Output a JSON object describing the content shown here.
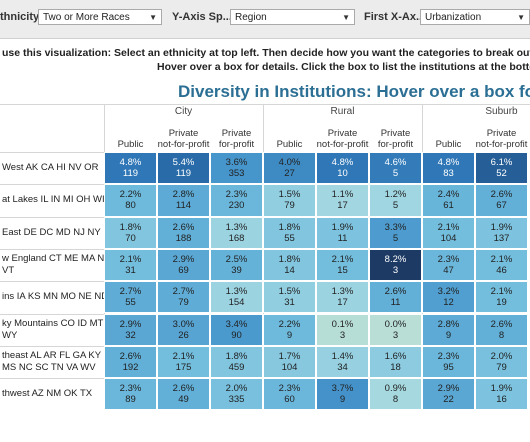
{
  "filters": [
    {
      "label": "thnicity ...",
      "value": "Two or More Races"
    },
    {
      "label": "Y-Axis Sp...",
      "value": "Region"
    },
    {
      "label": "First X-Ax...",
      "value": "Urbanization"
    }
  ],
  "instructions": [
    "use this visualization: Select an ethnicity at top left.  Then decide how you want the categories to break out by using the",
    "Hover over a box for details.  Click the box to list the institutions at the bottom"
  ],
  "title": "Diversity in Institutions: Hover over a box for detai",
  "groups": [
    "City",
    "Rural",
    "Suburb"
  ],
  "columns": [
    [
      "Public"
    ],
    [
      "Private",
      "not-for-profit"
    ],
    [
      "Private",
      "for-profit"
    ],
    [
      "Public"
    ],
    [
      "Private",
      "not-for-profit"
    ],
    [
      "Private",
      "for-profit"
    ],
    [
      "Public"
    ],
    [
      "Private",
      "not-for-profit"
    ]
  ],
  "rows": [
    {
      "label": [
        "West AK CA HI NV OR"
      ],
      "cells": [
        [
          "4.8%",
          "119"
        ],
        [
          "5.4%",
          "119"
        ],
        [
          "3.6%",
          "353"
        ],
        [
          "4.0%",
          "27"
        ],
        [
          "4.8%",
          "10"
        ],
        [
          "4.6%",
          "5"
        ],
        [
          "4.8%",
          "83"
        ],
        [
          "6.1%",
          "52"
        ]
      ]
    },
    {
      "label": [
        "at Lakes IL IN MI OH WI"
      ],
      "cells": [
        [
          "2.2%",
          "80"
        ],
        [
          "2.8%",
          "114"
        ],
        [
          "2.3%",
          "230"
        ],
        [
          "1.5%",
          "79"
        ],
        [
          "1.1%",
          "17"
        ],
        [
          "1.2%",
          "5"
        ],
        [
          "2.4%",
          "61"
        ],
        [
          "2.6%",
          "67"
        ]
      ]
    },
    {
      "label": [
        "East DE DC MD NJ NY"
      ],
      "cells": [
        [
          "1.8%",
          "70"
        ],
        [
          "2.6%",
          "188"
        ],
        [
          "1.3%",
          "168"
        ],
        [
          "1.8%",
          "55"
        ],
        [
          "1.9%",
          "11"
        ],
        [
          "3.3%",
          "5"
        ],
        [
          "2.1%",
          "104"
        ],
        [
          "1.9%",
          "137"
        ]
      ]
    },
    {
      "label": [
        "w England CT ME MA NH",
        "VT"
      ],
      "cells": [
        [
          "2.1%",
          "31"
        ],
        [
          "2.9%",
          "69"
        ],
        [
          "2.5%",
          "39"
        ],
        [
          "1.8%",
          "14"
        ],
        [
          "2.1%",
          "15"
        ],
        [
          "8.2%",
          "3"
        ],
        [
          "2.3%",
          "47"
        ],
        [
          "2.1%",
          "46"
        ]
      ]
    },
    {
      "label": [
        "ins IA KS MN MO NE ND"
      ],
      "cells": [
        [
          "2.7%",
          "55"
        ],
        [
          "2.7%",
          "79"
        ],
        [
          "1.3%",
          "154"
        ],
        [
          "1.5%",
          "31"
        ],
        [
          "1.3%",
          "17"
        ],
        [
          "2.6%",
          "11"
        ],
        [
          "3.2%",
          "12"
        ],
        [
          "2.1%",
          "19"
        ]
      ]
    },
    {
      "label": [
        "ky Mountains CO ID MT",
        "WY"
      ],
      "cells": [
        [
          "2.9%",
          "32"
        ],
        [
          "3.0%",
          "26"
        ],
        [
          "3.4%",
          "90"
        ],
        [
          "2.2%",
          "9"
        ],
        [
          "0.1%",
          "3"
        ],
        [
          "0.0%",
          "3"
        ],
        [
          "2.8%",
          "9"
        ],
        [
          "2.6%",
          "8"
        ]
      ]
    },
    {
      "label": [
        "theast AL AR FL GA KY",
        "MS NC SC TN VA WV"
      ],
      "cells": [
        [
          "2.6%",
          "192"
        ],
        [
          "2.1%",
          "175"
        ],
        [
          "1.8%",
          "459"
        ],
        [
          "1.7%",
          "104"
        ],
        [
          "1.4%",
          "34"
        ],
        [
          "1.6%",
          "18"
        ],
        [
          "2.3%",
          "95"
        ],
        [
          "2.0%",
          "79"
        ]
      ]
    },
    {
      "label": [
        "thwest AZ NM OK TX"
      ],
      "cells": [
        [
          "2.3%",
          "89"
        ],
        [
          "2.6%",
          "49"
        ],
        [
          "2.0%",
          "335"
        ],
        [
          "2.3%",
          "60"
        ],
        [
          "3.7%",
          "9"
        ],
        [
          "0.9%",
          "8"
        ],
        [
          "2.9%",
          "22"
        ],
        [
          "1.9%",
          "16"
        ]
      ]
    }
  ]
}
